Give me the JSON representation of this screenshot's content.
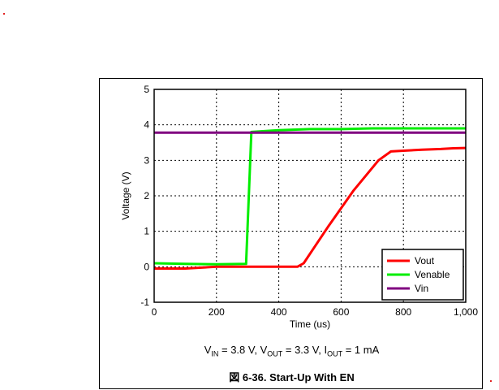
{
  "page": {
    "marker_color": "#e02020"
  },
  "chart_data": {
    "type": "line",
    "title": "",
    "xlabel": "Time (us)",
    "ylabel": "Voltage (V)",
    "xlim": [
      0,
      1000
    ],
    "ylim": [
      -1,
      5
    ],
    "x_ticks": [
      "0",
      "200",
      "400",
      "600",
      "800",
      "1,000"
    ],
    "y_ticks": [
      "-1",
      "0",
      "1",
      "2",
      "3",
      "4",
      "5"
    ],
    "grid": true,
    "legend_position": "bottom-right",
    "series": [
      {
        "name": "Vout",
        "color": "#ff0000",
        "x": [
          0,
          100,
          200,
          300,
          400,
          460,
          480,
          560,
          640,
          720,
          760,
          800,
          860,
          920,
          960,
          1000
        ],
        "y": [
          -0.05,
          -0.05,
          0.0,
          0.0,
          0.0,
          0.0,
          0.1,
          1.15,
          2.15,
          3.0,
          3.25,
          3.27,
          3.3,
          3.32,
          3.34,
          3.35
        ]
      },
      {
        "name": "Venable",
        "color": "#00ee00",
        "x": [
          0,
          100,
          200,
          295,
          312,
          400,
          500,
          600,
          700,
          800,
          900,
          1000
        ],
        "y": [
          0.1,
          0.08,
          0.07,
          0.08,
          3.8,
          3.85,
          3.88,
          3.88,
          3.9,
          3.9,
          3.9,
          3.9
        ]
      },
      {
        "name": "Vin",
        "color": "#800080",
        "x": [
          0,
          200,
          400,
          600,
          800,
          1000
        ],
        "y": [
          3.78,
          3.78,
          3.78,
          3.78,
          3.78,
          3.78
        ]
      }
    ]
  },
  "conditions": {
    "vin_symbol": "V",
    "vin_sub": "IN",
    "vin_value": " = 3.8 V, ",
    "vout_symbol": "V",
    "vout_sub": "OUT",
    "vout_value": " = 3.3 V, ",
    "iout_symbol": "I",
    "iout_sub": "OUT",
    "iout_value": " = 1 mA"
  },
  "caption": "図 6-36. Start-Up With EN"
}
